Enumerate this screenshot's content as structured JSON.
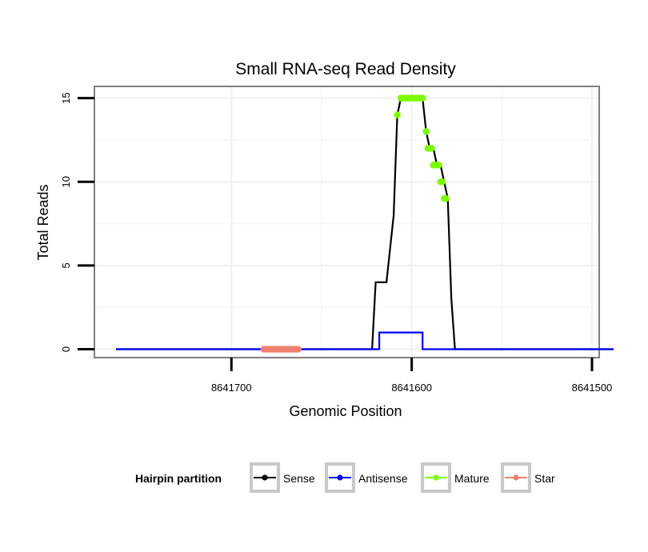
{
  "chart_data": {
    "type": "line",
    "title": "Small RNA-seq Read Density",
    "xlabel": "Genomic Position",
    "ylabel": "Total Reads",
    "x_reversed": true,
    "xlim": [
      8641776,
      8641496
    ],
    "ylim": [
      -0.5,
      15.7
    ],
    "x_ticks": [
      8641700,
      8641600,
      8641500
    ],
    "x_tick_labels": [
      "8641700",
      "8641600",
      "8641500"
    ],
    "y_ticks": [
      0,
      5,
      10,
      15
    ],
    "y_tick_labels": [
      "0",
      "5",
      "10",
      "15"
    ],
    "grid": true,
    "legend_position": "bottom",
    "legend": {
      "title": "Hairpin partition",
      "entries": [
        {
          "name": "Sense",
          "color": "#000000"
        },
        {
          "name": "Antisense",
          "color": "#0000ff"
        },
        {
          "name": "Mature",
          "color": "#7cfc00"
        },
        {
          "name": "Star",
          "color": "#f08070"
        }
      ]
    },
    "series": [
      {
        "name": "Sense",
        "color": "#000000",
        "kind": "line",
        "x": [
          8641764,
          8641622,
          8641620,
          8641614,
          8641612,
          8641610,
          8641608,
          8641606,
          8641604,
          8641602,
          8641600,
          8641598,
          8641596,
          8641594,
          8641592,
          8641590,
          8641588,
          8641586,
          8641584,
          8641582,
          8641580,
          8641578,
          8641576,
          8641566,
          8641488
        ],
        "y": [
          0,
          0,
          4,
          4,
          6,
          8,
          14,
          15,
          15,
          15,
          15,
          15,
          15,
          15,
          13,
          12,
          12,
          11,
          11,
          10,
          9,
          3,
          0,
          0,
          0
        ]
      },
      {
        "name": "Antisense",
        "color": "#0000ff",
        "kind": "line",
        "x": [
          8641764,
          8641620,
          8641618,
          8641618,
          8641596,
          8641594,
          8641594,
          8641488
        ],
        "y": [
          0,
          0,
          0,
          1,
          1,
          1,
          0,
          0
        ]
      },
      {
        "name": "Mature",
        "color": "#7cfc00",
        "kind": "points",
        "x": [
          8641608,
          8641606,
          8641605,
          8641604,
          8641603,
          8641602,
          8641601,
          8641600,
          8641599,
          8641598,
          8641597,
          8641596,
          8641595,
          8641594,
          8641592,
          8641591,
          8641590,
          8641589,
          8641588,
          8641587,
          8641586,
          8641585,
          8641584,
          8641583,
          8641582,
          8641581
        ],
        "y": [
          14,
          15,
          15,
          15,
          15,
          15,
          15,
          15,
          15,
          15,
          15,
          15,
          15,
          15,
          13,
          12,
          12,
          12,
          11,
          11,
          11,
          11,
          10,
          10,
          9,
          9
        ]
      },
      {
        "name": "Star",
        "color": "#f08070",
        "kind": "points",
        "x": [
          8641682,
          8641681,
          8641680,
          8641679,
          8641678,
          8641677,
          8641676,
          8641675,
          8641674,
          8641673,
          8641672,
          8641671,
          8641670,
          8641669,
          8641668,
          8641667,
          8641666,
          8641665,
          8641664,
          8641663
        ],
        "y": [
          0,
          0,
          0,
          0,
          0,
          0,
          0,
          0,
          0,
          0,
          0,
          0,
          0,
          0,
          0,
          0,
          0,
          0,
          0,
          0
        ]
      }
    ]
  }
}
